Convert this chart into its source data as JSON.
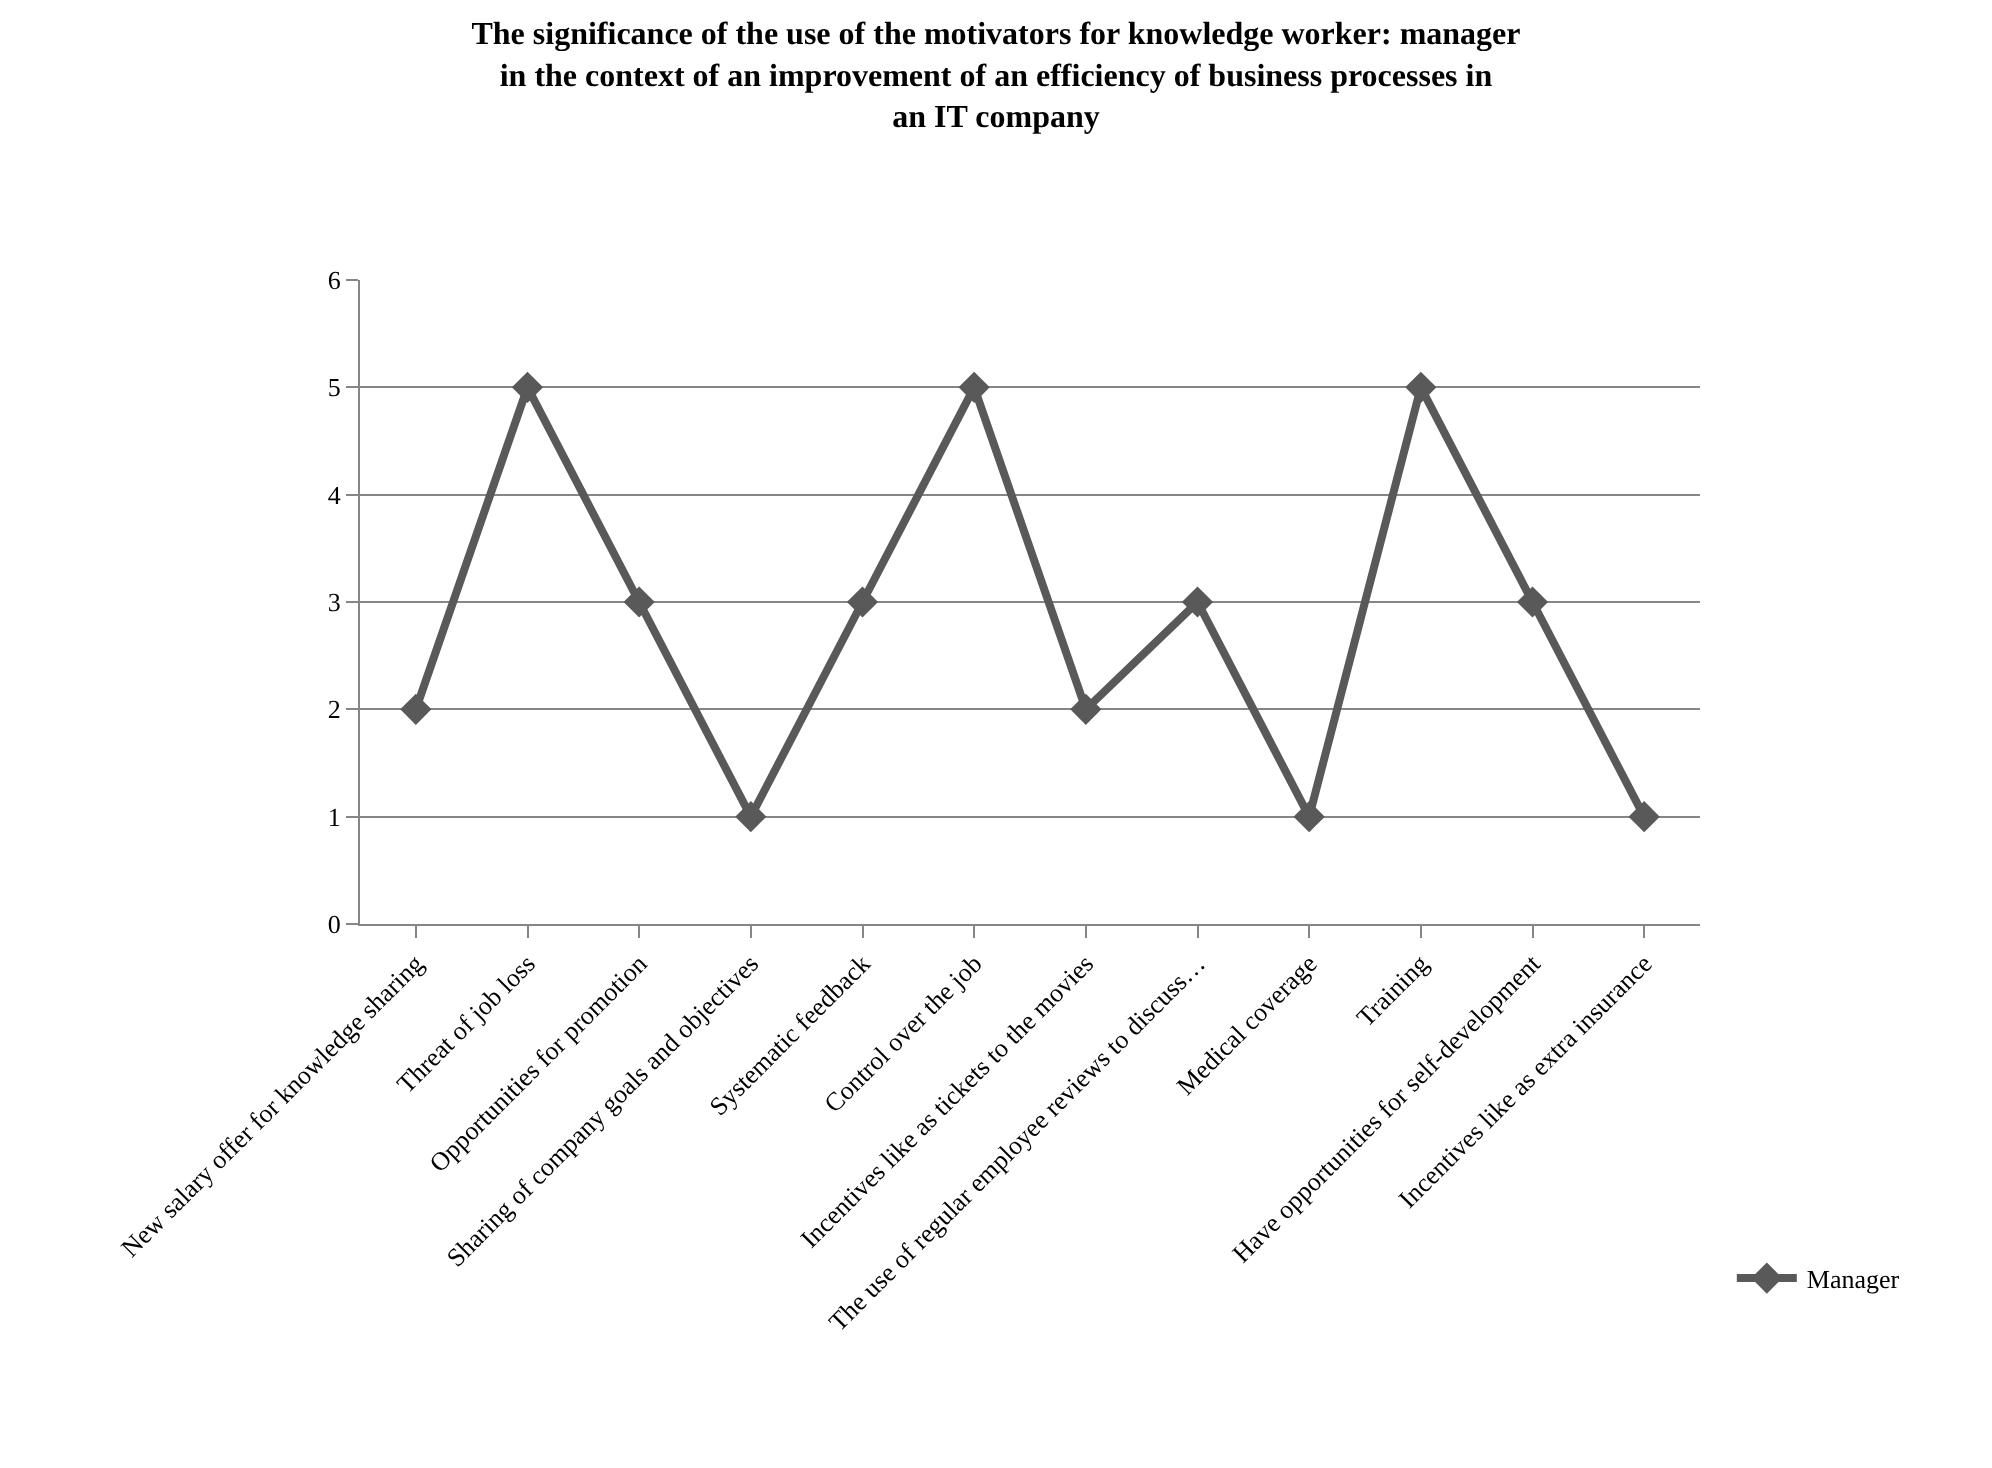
{
  "chart_data": {
    "type": "line",
    "title": "The significance of the use of the motivators for knowledge worker: manager in the context of an improvement of an efficiency of business processes in an IT company",
    "categories": [
      "New salary offer for knowledge sharing",
      "Threat of job loss",
      "Opportunities for promotion",
      "Sharing of company goals and objectives",
      "Systematic feedback",
      "Control over the job",
      "Incentives like as tickets to the movies",
      "The use of regular employee reviews to discuss…",
      "Medical coverage",
      "Training",
      "Have opportunities for self-development",
      "Incentives like as extra insurance"
    ],
    "series": [
      {
        "name": "Manager",
        "color": "#595959",
        "values": [
          2,
          5,
          3,
          1,
          3,
          5,
          2,
          3,
          1,
          5,
          3,
          1
        ]
      }
    ],
    "ylim": [
      0,
      6
    ],
    "yticks": [
      0,
      1,
      2,
      3,
      4,
      5,
      6
    ],
    "grid": "y",
    "legend": "right",
    "marker": "diamond",
    "line_style": "solid"
  }
}
